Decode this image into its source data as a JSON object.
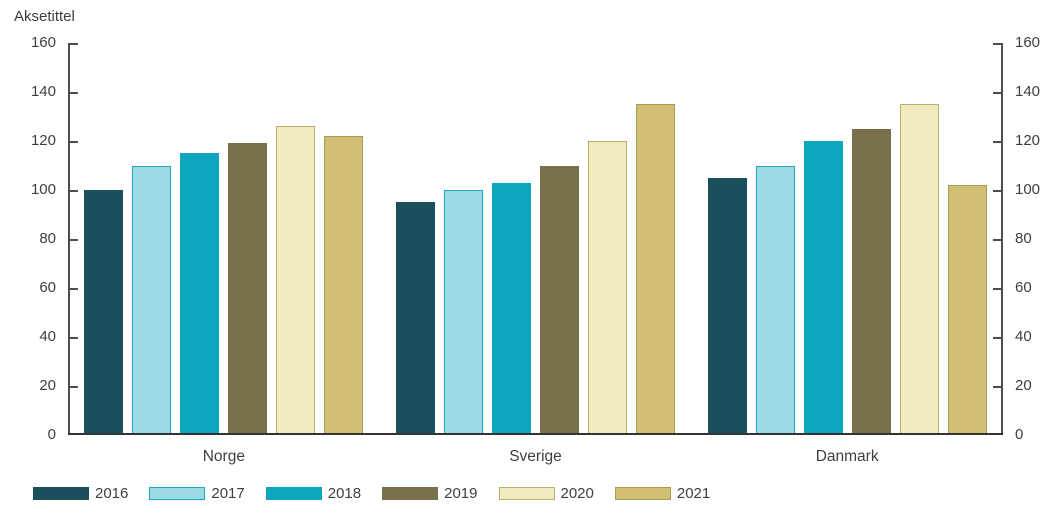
{
  "chart_data": {
    "type": "bar",
    "title": "Aksetittel",
    "categories": [
      "Norge",
      "Sverige",
      "Danmark"
    ],
    "series": [
      {
        "name": "2016",
        "values": [
          100,
          95,
          105
        ],
        "fill": "#1a505c",
        "border": "#1a505c"
      },
      {
        "name": "2017",
        "values": [
          110,
          100,
          110
        ],
        "fill": "#9cd9e3",
        "border": "#18a8c4"
      },
      {
        "name": "2018",
        "values": [
          115,
          103,
          120
        ],
        "fill": "#0ea5bf",
        "border": "#0ea5bf"
      },
      {
        "name": "2019",
        "values": [
          119,
          110,
          125
        ],
        "fill": "#77704a",
        "border": "#77704a"
      },
      {
        "name": "2020",
        "values": [
          126,
          120,
          135
        ],
        "fill": "#f1ecc0",
        "border": "#bcae6e"
      },
      {
        "name": "2021",
        "values": [
          122,
          135,
          102
        ],
        "fill": "#d0bf72",
        "border": "#a99b50"
      }
    ],
    "y_axis": {
      "min": 0,
      "max": 160,
      "step": 20,
      "tick_labels": [
        "0",
        "20",
        "40",
        "60",
        "80",
        "100",
        "120",
        "140",
        "160"
      ],
      "mirrored_right_axis": true
    },
    "xlabel": "",
    "ylabel": "Aksetittel",
    "grid": false,
    "legend_position": "bottom-left"
  },
  "colors": {
    "background": "#ffffff",
    "text": "#3d3d3d",
    "axis_line": "#4d4d4d",
    "baseline": "#333333"
  }
}
